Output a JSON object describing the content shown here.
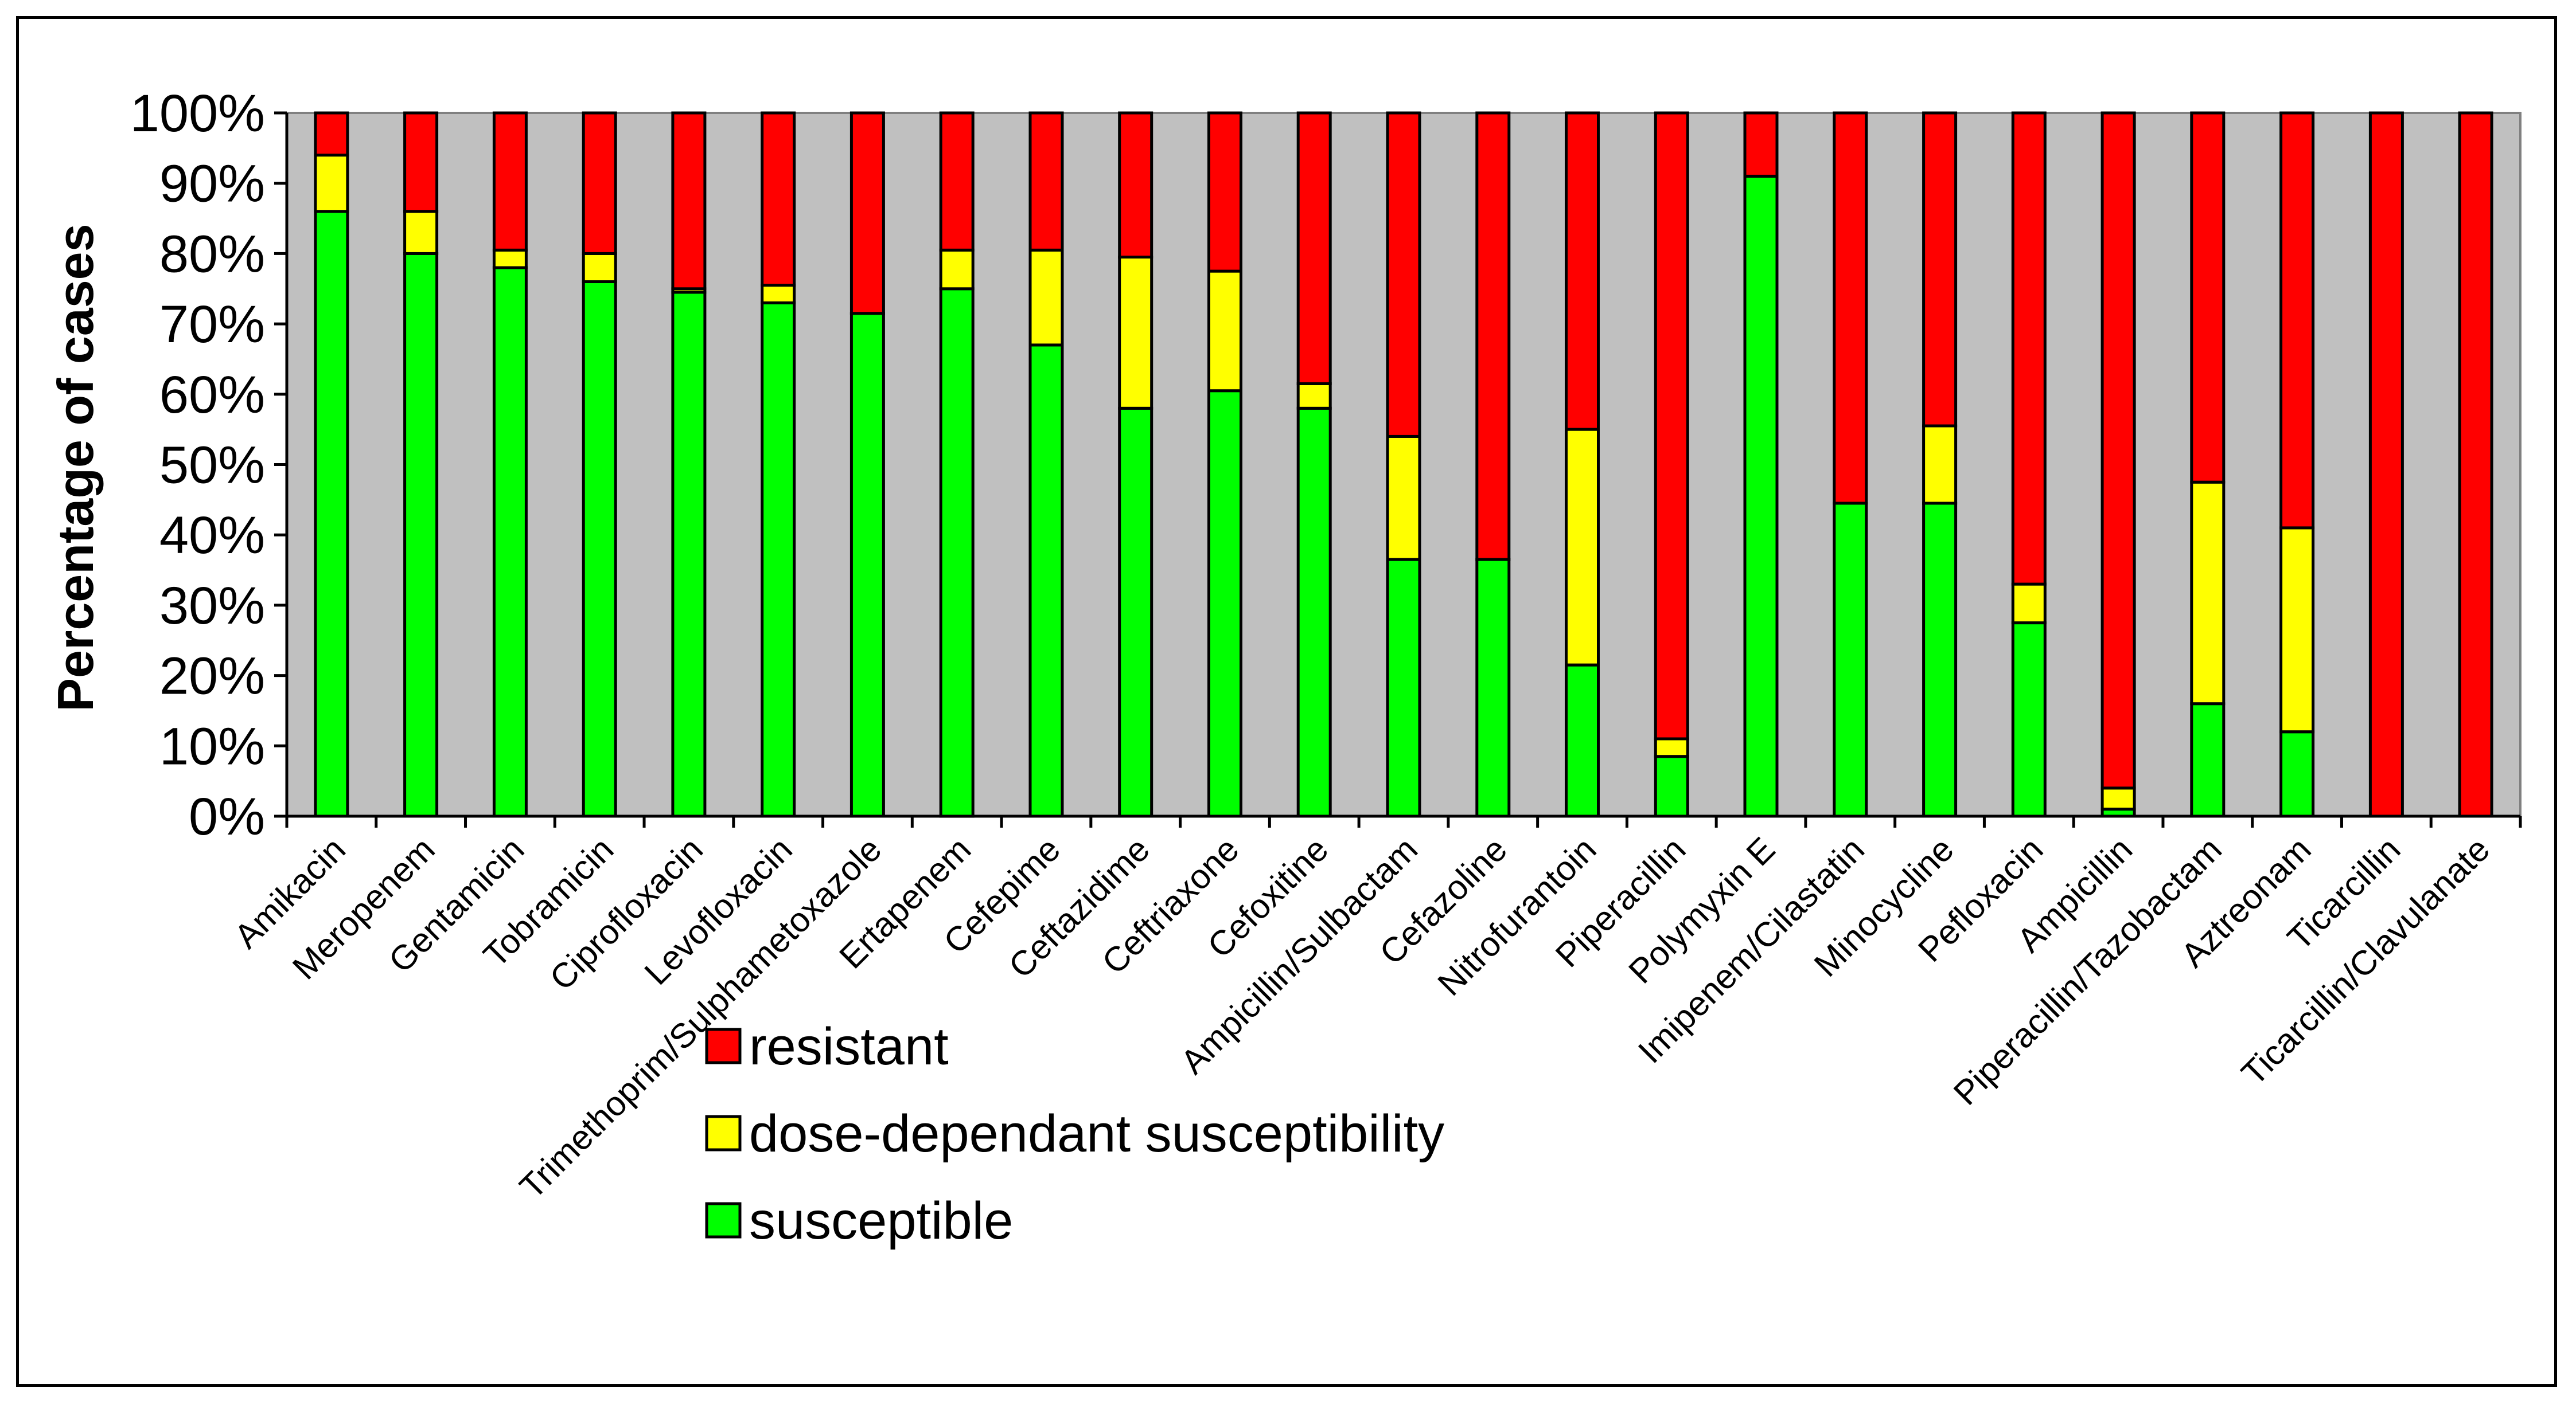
{
  "chart_data": {
    "type": "bar",
    "stacked": true,
    "title": "",
    "xlabel": "",
    "ylabel": "Percentage of cases",
    "ylim": [
      0,
      100
    ],
    "y_ticks": [
      "0%",
      "10%",
      "20%",
      "30%",
      "40%",
      "50%",
      "60%",
      "70%",
      "80%",
      "90%",
      "100%"
    ],
    "grid": false,
    "legend_position": "bottom-center",
    "categories": [
      "Amikacin",
      "Meropenem",
      "Gentamicin",
      "Tobramicin",
      "Ciprofloxacin",
      "Levofloxacin",
      "Trimethoprim/Sulphametoxazole",
      "Ertapenem",
      "Cefepime",
      "Ceftazidime",
      "Ceftriaxone",
      "Cefoxitine",
      "Ampicillin/Sulbactam",
      "Cefazoline",
      "Nitrofurantoin",
      "Piperacillin",
      "Polymyxin E",
      "Imipenem/Cilastatin",
      "Minocycline",
      "Pefloxacin",
      "Ampicillin",
      "Piperacillin/Tazobactam",
      "Aztreonam",
      "Ticarcillin",
      "Ticarcillin/Clavulanate"
    ],
    "series": [
      {
        "name": "susceptible",
        "color": "#00ff00",
        "values": [
          86,
          80,
          78,
          76,
          74.5,
          73,
          71.5,
          75,
          67,
          58,
          60.5,
          58,
          36.5,
          36.5,
          21.5,
          8.5,
          91,
          44.5,
          44.5,
          27.5,
          1,
          16,
          12,
          0,
          0
        ]
      },
      {
        "name": "dose-dependant susceptibility",
        "color": "#ffff00",
        "values": [
          8,
          6,
          2.5,
          4,
          0.5,
          2.5,
          0,
          5.5,
          13.5,
          21.5,
          17,
          3.5,
          17.5,
          0,
          33.5,
          2.5,
          0,
          0,
          11,
          5.5,
          3,
          31.5,
          29,
          0,
          0
        ]
      },
      {
        "name": "resistant",
        "color": "#ff0000",
        "values": [
          6,
          14,
          19.5,
          20,
          25,
          24.5,
          28.5,
          19.5,
          19.5,
          20.5,
          22.5,
          38.5,
          46,
          63.5,
          45,
          89,
          9,
          55.5,
          44.5,
          67,
          96,
          52.5,
          59,
          100,
          100
        ]
      }
    ],
    "legend": [
      {
        "label": "resistant",
        "color": "#ff0000"
      },
      {
        "label": "dose-dependant susceptibility",
        "color": "#ffff00"
      },
      {
        "label": "susceptible",
        "color": "#00ff00"
      }
    ],
    "plot_background": "#c0c0c0"
  }
}
